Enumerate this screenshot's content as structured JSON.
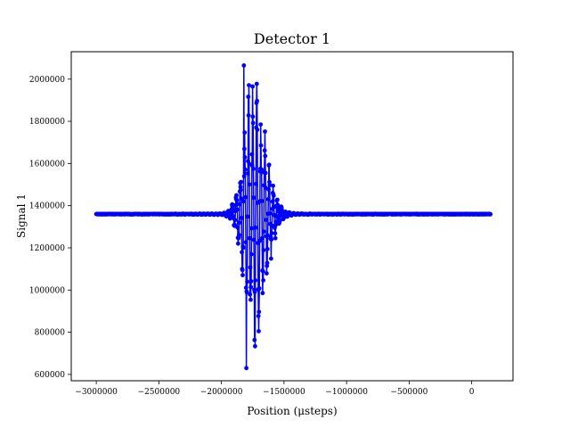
{
  "chart_data": {
    "type": "line",
    "title": "Detector 1",
    "xlabel": "Position (μsteps)",
    "ylabel": "Signal 1",
    "xlim": [
      -3200000,
      330000
    ],
    "ylim": [
      570000,
      2130000
    ],
    "xticks": [
      -3000000,
      -2500000,
      -2000000,
      -1500000,
      -1000000,
      -500000,
      0
    ],
    "xtick_labels": [
      "−3000000",
      "−2500000",
      "−2000000",
      "−1500000",
      "−1000000",
      "−500000",
      "0"
    ],
    "yticks": [
      600000,
      800000,
      1000000,
      1200000,
      1400000,
      1600000,
      1800000,
      2000000
    ],
    "ytick_labels": [
      "600000",
      "800000",
      "1000000",
      "1200000",
      "1400000",
      "1600000",
      "1800000",
      "2000000"
    ],
    "grid": false,
    "series": [
      {
        "color": "#0000ff",
        "marker": "circle",
        "baseline": 1360000,
        "x_start": -3000000,
        "x_end": 150000,
        "center": -1750000,
        "peak_max": 2065000,
        "peak_min": 630000,
        "points_summary": [
          {
            "x": -3000000,
            "y": 1360000
          },
          {
            "x": -2400000,
            "y": 1362000
          },
          {
            "x": -2200000,
            "y": 1370000
          },
          {
            "x": -2000000,
            "y": 1390000
          },
          {
            "x": -1900000,
            "y": 1560000
          },
          {
            "x": -1860000,
            "y": 1870000
          },
          {
            "x": -1820000,
            "y": 2065000
          },
          {
            "x": -1800000,
            "y": 630000
          },
          {
            "x": -1780000,
            "y": 2050000
          },
          {
            "x": -1760000,
            "y": 750000
          },
          {
            "x": -1700000,
            "y": 1800000
          },
          {
            "x": -1650000,
            "y": 960000
          },
          {
            "x": -1600000,
            "y": 1650000
          },
          {
            "x": -1550000,
            "y": 1190000
          },
          {
            "x": -1500000,
            "y": 1390000
          },
          {
            "x": -1400000,
            "y": 1362000
          },
          {
            "x": -1000000,
            "y": 1360000
          },
          {
            "x": -500000,
            "y": 1360000
          },
          {
            "x": 150000,
            "y": 1360000
          }
        ]
      }
    ]
  }
}
